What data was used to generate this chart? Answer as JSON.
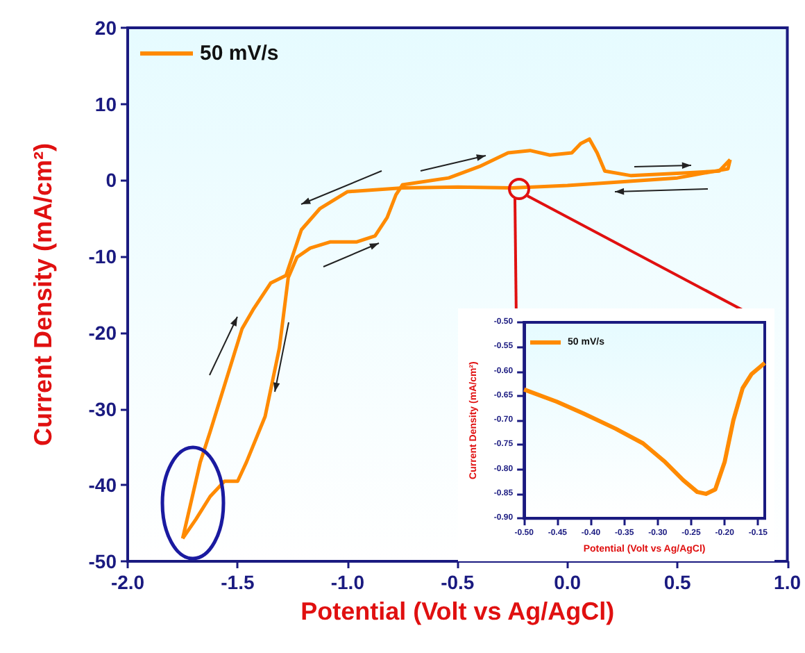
{
  "chart_data": [
    {
      "type": "line",
      "xlabel": "Potential (Volt vs Ag/AgCl)",
      "ylabel": "Current Density (mA/cm²)",
      "xlim": [
        -2,
        1
      ],
      "ylim": [
        -50,
        20
      ],
      "xticks": [
        {
          "value": -2,
          "label": "-2.0"
        },
        {
          "value": -1.5,
          "label": "-1.5"
        },
        {
          "value": -1,
          "label": "-1.0"
        },
        {
          "value": -0.5,
          "label": "-0.5"
        },
        {
          "value": 0,
          "label": "0.0"
        },
        {
          "value": 0.5,
          "label": "0.5"
        },
        {
          "value": 1,
          "label": "1.0"
        }
      ],
      "yticks": [
        -50,
        -40,
        -30,
        -20,
        -10,
        0,
        10,
        20
      ],
      "legend": "top left",
      "marker": "none",
      "series": [
        {
          "name": "50 mV/s",
          "color": "#ff8a00",
          "x": [
            -1.75,
            -1.67,
            -1.625,
            -1.55,
            -1.48,
            -1.43,
            -1.35,
            -1.28,
            -1.21,
            -1.125,
            -1.0,
            -0.75,
            -0.5,
            -0.25,
            0.0,
            0.2,
            0.5,
            0.73,
            0.74
          ],
          "values": [
            -47,
            -37,
            -33,
            -26,
            -19.5,
            -17,
            -13.5,
            -12.5,
            -6.5,
            -3.7,
            -1.5,
            -1,
            -0.9,
            -1,
            -0.7,
            -0.3,
            0.3,
            1.5,
            2.7
          ]
        },
        {
          "color": "#ff8a00",
          "x": [
            0.74,
            0.69,
            0.5,
            0.29,
            0.17,
            0.135,
            0.1,
            0.06,
            0.02,
            -0.08,
            -0.17,
            -0.27,
            -0.4,
            -0.54,
            -0.75,
            -0.78,
            -0.82,
            -0.875,
            -0.96,
            -1.08,
            -1.17,
            -1.23,
            -1.27,
            -1.31,
            -1.375,
            -1.46,
            -1.5,
            -1.56,
            -1.625,
            -1.69,
            -1.75
          ],
          "values": [
            2.7,
            1.2,
            0.9,
            0.6,
            1.2,
            3.6,
            5.4,
            4.8,
            3.6,
            3.3,
            3.9,
            3.6,
            1.8,
            0.3,
            -0.6,
            -1.9,
            -4.9,
            -7.3,
            -8.1,
            -8.1,
            -8.9,
            -10.1,
            -12.8,
            -22,
            -31,
            -37,
            -39.5,
            -39.5,
            -41.5,
            -44.5,
            -47
          ]
        }
      ]
    },
    {
      "type": "line",
      "xlabel": "Potential (Volt vs Ag/AgCl)",
      "ylabel": "Current Density (mA/cm²)",
      "xlim": [
        -0.5,
        -0.14
      ],
      "ylim": [
        -0.9,
        -0.5
      ],
      "xticks": [
        {
          "value": -0.5,
          "label": "-0.50"
        },
        {
          "value": -0.45,
          "label": "-0.45"
        },
        {
          "value": -0.4,
          "label": "-0.40"
        },
        {
          "value": -0.35,
          "label": "-0.35"
        },
        {
          "value": -0.3,
          "label": "-0.30"
        },
        {
          "value": -0.25,
          "label": "-0.25"
        },
        {
          "value": -0.2,
          "label": "-0.20"
        },
        {
          "value": -0.15,
          "label": "-0.15"
        }
      ],
      "yticks": [
        {
          "value": -0.9,
          "label": "-0.90"
        },
        {
          "value": -0.85,
          "label": "-0.85"
        },
        {
          "value": -0.8,
          "label": "-0.80"
        },
        {
          "value": -0.75,
          "label": "-0.75"
        },
        {
          "value": -0.7,
          "label": "-0.70"
        },
        {
          "value": -0.65,
          "label": "-0.65"
        },
        {
          "value": -0.6,
          "label": "-0.60"
        },
        {
          "value": -0.55,
          "label": "-0.55"
        },
        {
          "value": -0.5,
          "label": "-0.50"
        }
      ],
      "legend": "top left",
      "marker": "none",
      "series": [
        {
          "name": "50 mV/s",
          "color": "#ff8a00",
          "x": [
            -0.5,
            -0.451,
            -0.411,
            -0.363,
            -0.322,
            -0.289,
            -0.262,
            -0.241,
            -0.228,
            -0.214,
            -0.2,
            -0.187,
            -0.173,
            -0.16,
            -0.14
          ],
          "values": [
            -0.637,
            -0.662,
            -0.686,
            -0.717,
            -0.747,
            -0.785,
            -0.822,
            -0.846,
            -0.85,
            -0.841,
            -0.785,
            -0.7,
            -0.634,
            -0.606,
            -0.583
          ]
        }
      ]
    }
  ]
}
